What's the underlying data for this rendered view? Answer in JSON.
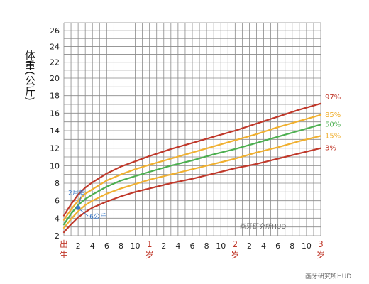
{
  "chart_data": {
    "type": "line",
    "ylabel": "体重(公斤)",
    "x_range": [
      0,
      36
    ],
    "y_range": [
      2,
      27
    ],
    "y_grid": [
      2,
      3,
      4,
      5,
      6,
      7,
      8,
      9,
      10,
      11,
      12,
      13,
      14,
      15,
      16,
      17,
      18,
      19,
      20,
      21,
      22,
      23,
      24,
      25,
      26,
      27
    ],
    "y_ticks": [
      {
        "v": 2,
        "label": "2"
      },
      {
        "v": 4,
        "label": "4"
      },
      {
        "v": 6,
        "label": "6"
      },
      {
        "v": 8,
        "label": "8"
      },
      {
        "v": 10,
        "label": "10"
      },
      {
        "v": 12,
        "label": "12"
      },
      {
        "v": 14,
        "label": "14"
      },
      {
        "v": 16,
        "label": "16"
      },
      {
        "v": 18,
        "label": "18"
      },
      {
        "v": 20,
        "label": "20"
      },
      {
        "v": 22,
        "label": "22"
      },
      {
        "v": 24,
        "label": "24"
      },
      {
        "v": 26,
        "label": "26"
      }
    ],
    "x_ticks": [
      {
        "v": 0,
        "label": "出生",
        "major": true
      },
      {
        "v": 2,
        "label": "2"
      },
      {
        "v": 4,
        "label": "4"
      },
      {
        "v": 6,
        "label": "6"
      },
      {
        "v": 8,
        "label": "8"
      },
      {
        "v": 10,
        "label": "10"
      },
      {
        "v": 12,
        "label": "1岁",
        "major": true
      },
      {
        "v": 14,
        "label": "2"
      },
      {
        "v": 16,
        "label": "4"
      },
      {
        "v": 18,
        "label": "6"
      },
      {
        "v": 20,
        "label": "8"
      },
      {
        "v": 22,
        "label": "10"
      },
      {
        "v": 24,
        "label": "2岁",
        "major": true
      },
      {
        "v": 26,
        "label": "2"
      },
      {
        "v": 28,
        "label": "4"
      },
      {
        "v": 30,
        "label": "6"
      },
      {
        "v": 32,
        "label": "8"
      },
      {
        "v": 34,
        "label": "10"
      },
      {
        "v": 36,
        "label": "3岁",
        "major": true
      }
    ],
    "series": [
      {
        "name": "97%",
        "color": "#c0392b",
        "x": [
          0,
          1,
          2,
          3,
          4,
          6,
          8,
          10,
          12,
          15,
          18,
          21,
          24,
          27,
          30,
          33,
          36
        ],
        "y": [
          4.3,
          5.6,
          6.7,
          7.5,
          8.1,
          9.1,
          9.9,
          10.5,
          11.1,
          11.9,
          12.6,
          13.3,
          14.0,
          14.8,
          15.6,
          16.4,
          17.1
        ]
      },
      {
        "name": "85%",
        "color": "#f0b030",
        "x": [
          0,
          1,
          2,
          3,
          4,
          6,
          8,
          10,
          12,
          15,
          18,
          21,
          24,
          27,
          30,
          33,
          36
        ],
        "y": [
          3.8,
          5.0,
          6.0,
          6.8,
          7.3,
          8.3,
          9.0,
          9.6,
          10.1,
          10.8,
          11.5,
          12.2,
          12.9,
          13.6,
          14.4,
          15.1,
          15.8
        ]
      },
      {
        "name": "50%",
        "color": "#4caf50",
        "x": [
          0,
          1,
          2,
          3,
          4,
          6,
          8,
          10,
          12,
          15,
          18,
          21,
          24,
          27,
          30,
          33,
          36
        ],
        "y": [
          3.3,
          4.5,
          5.5,
          6.2,
          6.7,
          7.6,
          8.3,
          8.8,
          9.3,
          10.0,
          10.6,
          11.3,
          11.9,
          12.6,
          13.3,
          14.0,
          14.7
        ]
      },
      {
        "name": "15%",
        "color": "#f0b030",
        "x": [
          0,
          1,
          2,
          3,
          4,
          6,
          8,
          10,
          12,
          15,
          18,
          21,
          24,
          27,
          30,
          33,
          36
        ],
        "y": [
          2.9,
          3.9,
          4.8,
          5.5,
          6.0,
          6.8,
          7.4,
          7.9,
          8.4,
          9.0,
          9.6,
          10.2,
          10.8,
          11.5,
          12.1,
          12.8,
          13.4
        ]
      },
      {
        "name": "3%",
        "color": "#c0392b",
        "x": [
          0,
          1,
          2,
          3,
          4,
          6,
          8,
          10,
          12,
          15,
          18,
          21,
          24,
          27,
          30,
          33,
          36
        ],
        "y": [
          2.4,
          3.3,
          4.1,
          4.7,
          5.2,
          5.9,
          6.5,
          7.0,
          7.4,
          8.0,
          8.5,
          9.1,
          9.7,
          10.2,
          10.8,
          11.4,
          12.0
        ]
      }
    ],
    "points": [
      {
        "x": 2,
        "y": 5.2,
        "label": "2月龄"
      },
      {
        "x": 2.2,
        "y": 4.1,
        "label": "6公斤"
      }
    ],
    "annotations": [
      {
        "text": "2月龄"
      },
      {
        "text": "6公斤"
      }
    ]
  },
  "watermarks": {
    "inner": "画牙研究所HUD",
    "corner": "画牙研究所HUD"
  },
  "colors": {
    "grid": "#8a8a8a",
    "red": "#c0392b",
    "yellow": "#f0b030",
    "green": "#4caf50",
    "blue": "#3a78c8"
  }
}
